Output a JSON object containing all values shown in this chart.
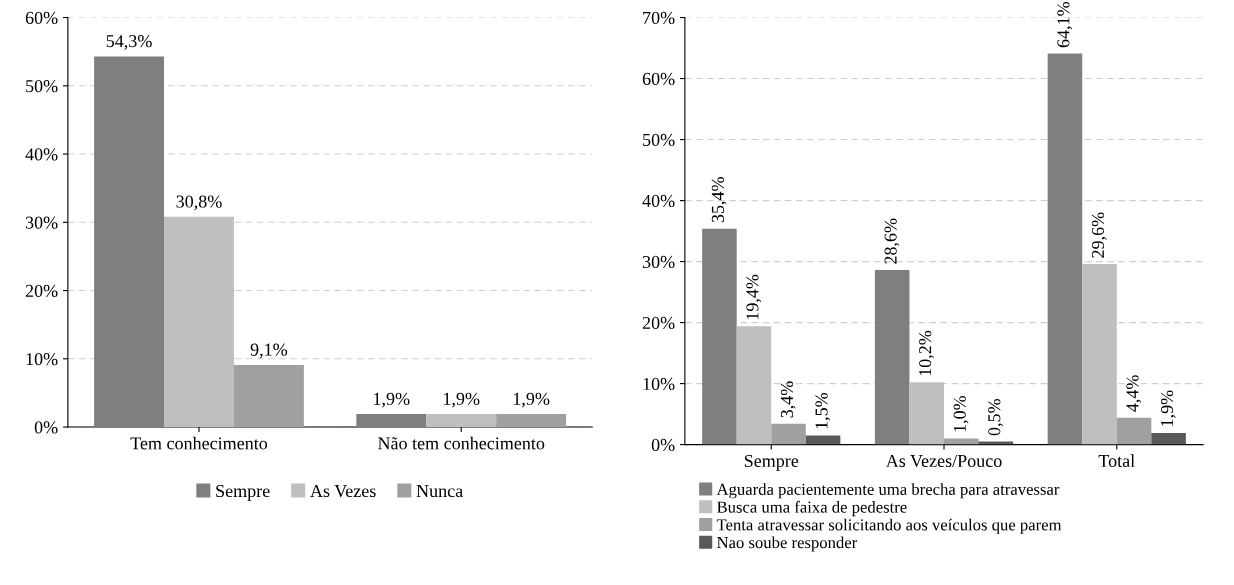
{
  "chart_data": [
    {
      "type": "bar",
      "categories": [
        "Tem conhecimento",
        "Não tem conhecimento"
      ],
      "ylim": [
        0,
        60
      ],
      "yticks": [
        {
          "value": 0,
          "label": "0%"
        },
        {
          "value": 10,
          "label": "10%"
        },
        {
          "value": 20,
          "label": "20%"
        },
        {
          "value": 30,
          "label": "30%"
        },
        {
          "value": 40,
          "label": "40%"
        },
        {
          "value": 50,
          "label": "50%"
        },
        {
          "value": 60,
          "label": "60%"
        }
      ],
      "grid": "y",
      "legend": "bottom",
      "series": [
        {
          "name": "Sempre",
          "color": "#7f7f7f",
          "values": [
            54.3,
            1.9
          ],
          "value_labels": [
            "54,3%",
            "1,9%"
          ]
        },
        {
          "name": "As Vezes",
          "color": "#bfbfbf",
          "values": [
            30.8,
            1.9
          ],
          "value_labels": [
            "30,8%",
            "1,9%"
          ]
        },
        {
          "name": "Nunca",
          "color": "#a0a0a0",
          "values": [
            9.1,
            1.9
          ],
          "value_labels": [
            "9,1%",
            "1,9%"
          ]
        }
      ]
    },
    {
      "type": "bar",
      "categories": [
        "Sempre",
        "As Vezes/Pouco",
        "Total"
      ],
      "ylim": [
        0,
        70
      ],
      "yticks": [
        {
          "value": 0,
          "label": "0%"
        },
        {
          "value": 10,
          "label": "10%"
        },
        {
          "value": 20,
          "label": "20%"
        },
        {
          "value": 30,
          "label": "30%"
        },
        {
          "value": 40,
          "label": "40%"
        },
        {
          "value": 50,
          "label": "50%"
        },
        {
          "value": 60,
          "label": "60%"
        },
        {
          "value": 70,
          "label": "70%"
        }
      ],
      "grid": "y",
      "legend": "bottom",
      "series": [
        {
          "name": "Aguarda pacientemente uma brecha para atravessar",
          "color": "#7f7f7f",
          "values": [
            35.4,
            28.6,
            64.1
          ],
          "value_labels": [
            "35,4%",
            "28,6%",
            "64,1%"
          ]
        },
        {
          "name": "Busca uma faixa de pedestre",
          "color": "#bfbfbf",
          "values": [
            19.4,
            10.2,
            29.6
          ],
          "value_labels": [
            "19,4%",
            "10,2%",
            "29,6%"
          ]
        },
        {
          "name": "Tenta atravessar solicitando aos veículos que parem",
          "color": "#a0a0a0",
          "values": [
            3.4,
            1.0,
            4.4
          ],
          "value_labels": [
            "3,4%",
            "1,0%",
            "4,4%"
          ]
        },
        {
          "name": "Nao soube responder",
          "color": "#595959",
          "values": [
            1.5,
            0.5,
            1.9
          ],
          "value_labels": [
            "1,5%",
            "0,5%",
            "1,9%"
          ]
        }
      ]
    }
  ]
}
